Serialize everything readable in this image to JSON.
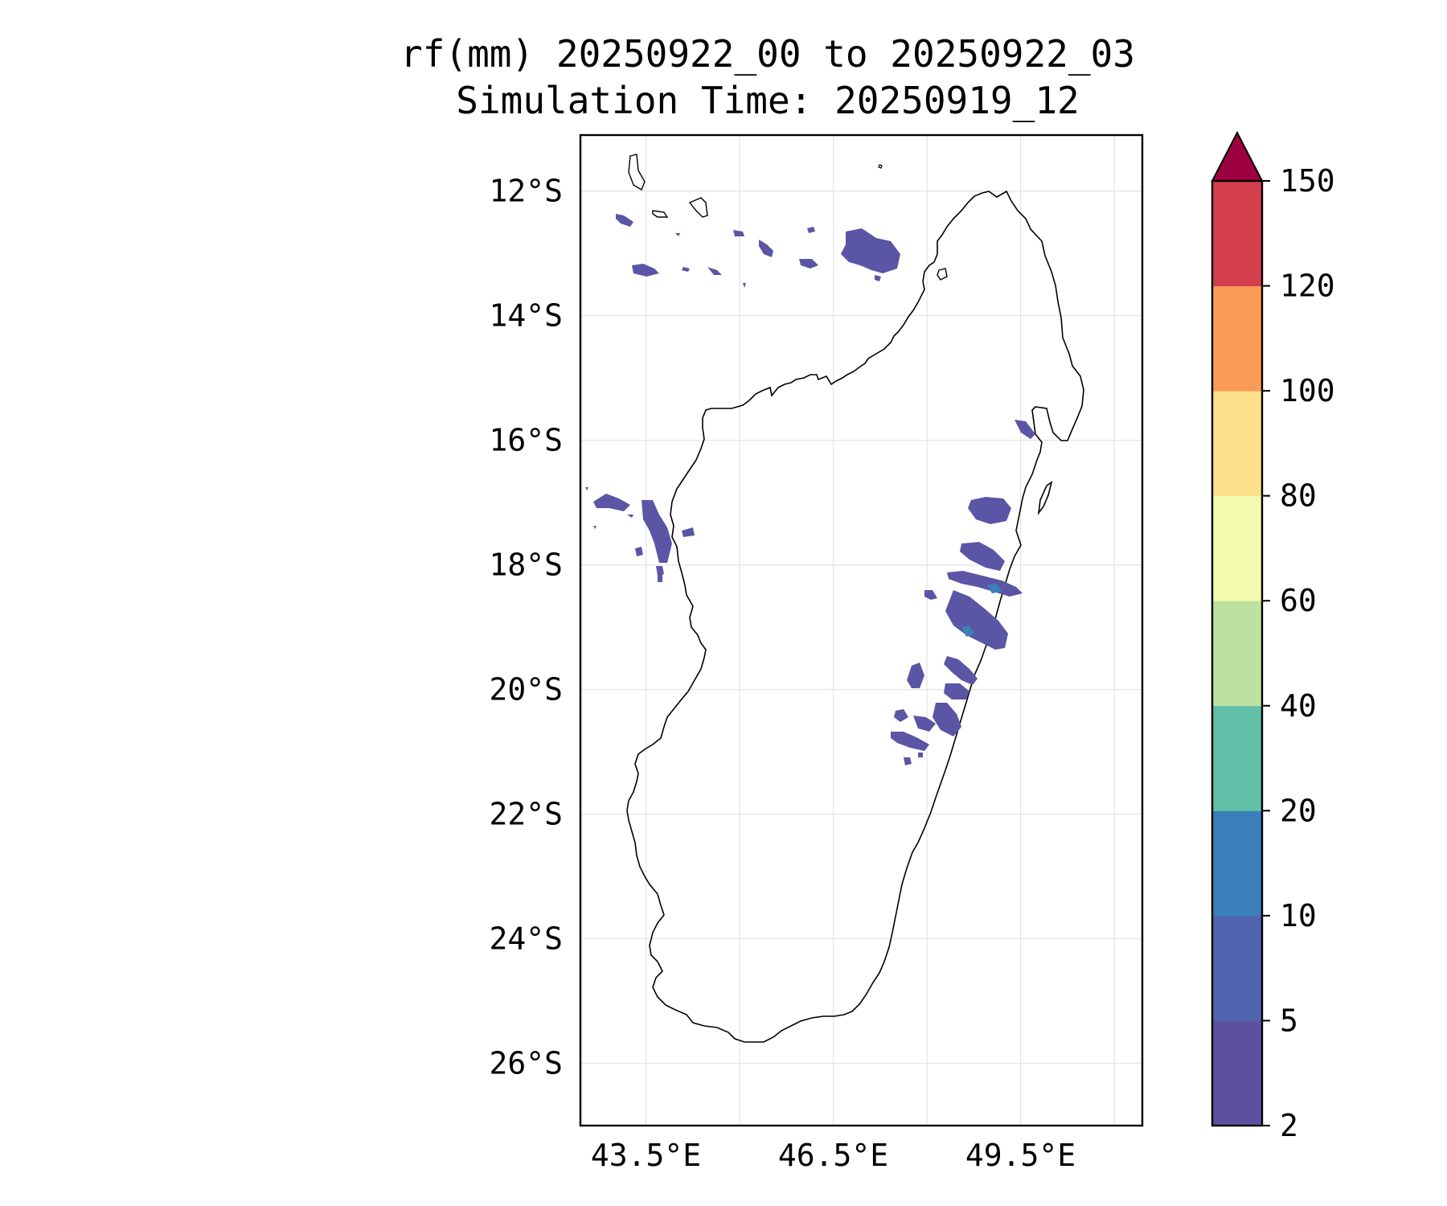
{
  "title": {
    "line1": "rf(mm) 20250922_00 to 20250922_03",
    "line2": "Simulation Time: 20250919_12"
  },
  "map": {
    "lat_labels": [
      "12°S",
      "14°S",
      "16°S",
      "18°S",
      "20°S",
      "22°S",
      "24°S",
      "26°S"
    ],
    "lat_values": [
      -12,
      -14,
      -16,
      -18,
      -20,
      -22,
      -24,
      -26
    ],
    "lon_labels": [
      "43.5°E",
      "46.5°E",
      "49.5°E"
    ],
    "lon_values": [
      43.5,
      46.5,
      49.5
    ],
    "extent": {
      "lon": [
        42.45,
        51.45
      ],
      "lat": [
        -27,
        -11.1
      ]
    },
    "grid": true,
    "coastline_color": "#000000"
  },
  "colorbar": {
    "levels": [
      "2",
      "5",
      "10",
      "20",
      "40",
      "60",
      "80",
      "100",
      "120",
      "150"
    ],
    "colors": [
      "#5e50a1",
      "#4f63ae",
      "#3a7fb9",
      "#62bea6",
      "#bde2a0",
      "#f3f9ae",
      "#fde08b",
      "#fa9a57",
      "#d43f4e"
    ],
    "extend_color": "#9e0142"
  },
  "rain_color": "#5a55a5",
  "rain_core_color": "#3d7fb8"
}
